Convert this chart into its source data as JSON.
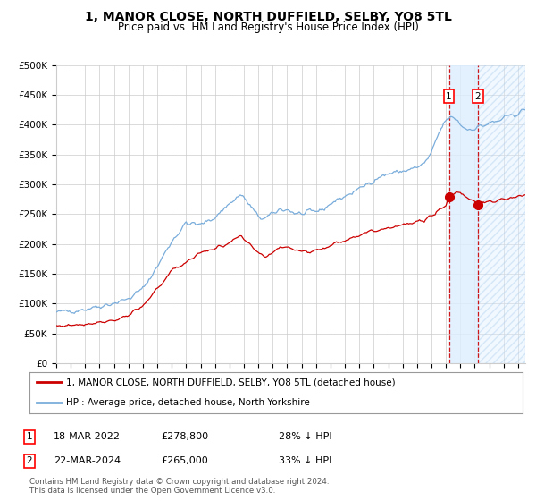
{
  "title": "1, MANOR CLOSE, NORTH DUFFIELD, SELBY, YO8 5TL",
  "subtitle": "Price paid vs. HM Land Registry's House Price Index (HPI)",
  "ylim": [
    0,
    500000
  ],
  "yticks": [
    0,
    50000,
    100000,
    150000,
    200000,
    250000,
    300000,
    350000,
    400000,
    450000,
    500000
  ],
  "ytick_labels": [
    "£0",
    "£50K",
    "£100K",
    "£150K",
    "£200K",
    "£250K",
    "£300K",
    "£350K",
    "£400K",
    "£450K",
    "£500K"
  ],
  "sale1_date": "18-MAR-2022",
  "sale1_price": 278800,
  "sale1_year": 2022.21,
  "sale2_date": "22-MAR-2024",
  "sale2_price": 265000,
  "sale2_year": 2024.22,
  "legend1": "1, MANOR CLOSE, NORTH DUFFIELD, SELBY, YO8 5TL (detached house)",
  "legend2": "HPI: Average price, detached house, North Yorkshire",
  "sale1_info_date": "18-MAR-2022",
  "sale1_info_price": "£278,800",
  "sale1_info_pct": "28% ↓ HPI",
  "sale2_info_date": "22-MAR-2024",
  "sale2_info_price": "£265,000",
  "sale2_info_pct": "33% ↓ HPI",
  "copyright": "Contains HM Land Registry data © Crown copyright and database right 2024.\nThis data is licensed under the Open Government Licence v3.0.",
  "hpi_color": "#7aaddb",
  "price_color": "#cc0000",
  "background_color": "#ffffff",
  "grid_color": "#cccccc",
  "shade_color": "#ddeeff",
  "xlim_start": 1995.0,
  "xlim_end": 2027.5,
  "shade_start": 2022.21,
  "shade_end": 2024.22,
  "future_start": 2024.22
}
